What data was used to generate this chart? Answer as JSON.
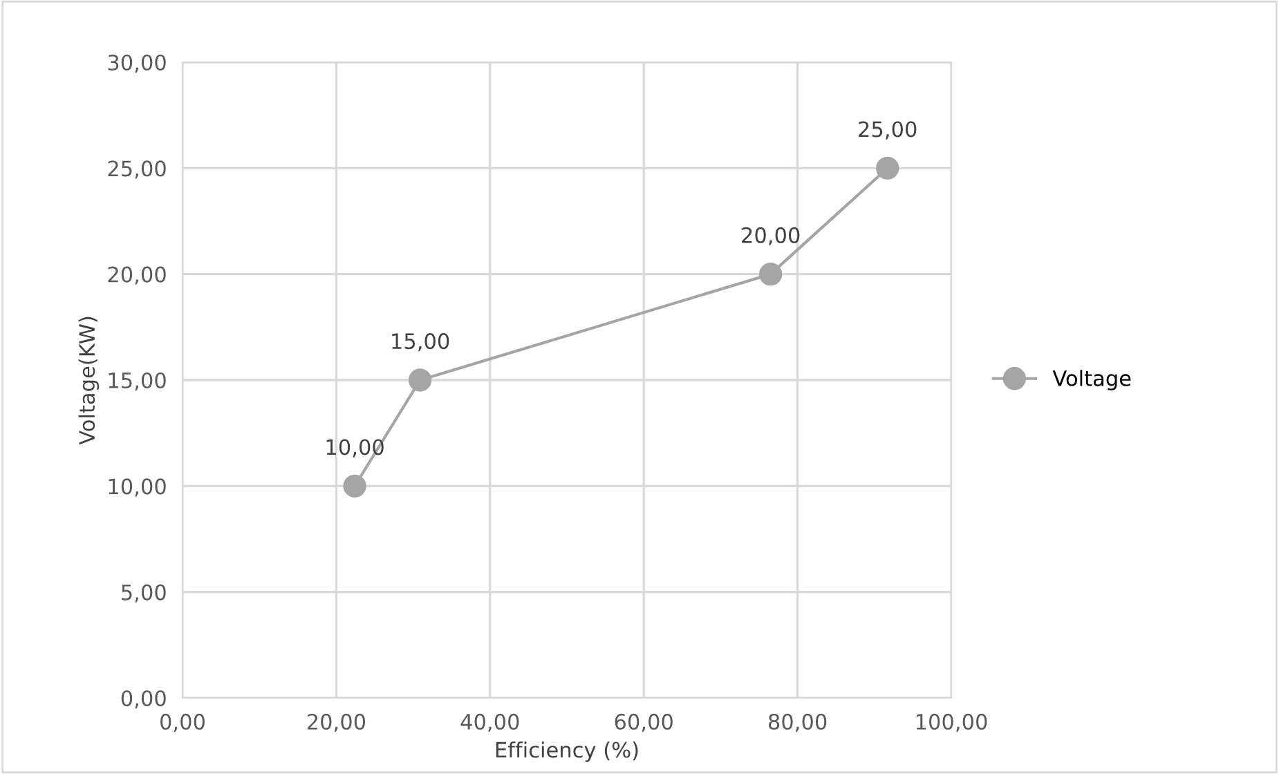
{
  "chart_data": {
    "type": "line",
    "xlabel": "Efficiency (%)",
    "ylabel": "Voltage(KW)",
    "series": [
      {
        "name": "Voltage",
        "color": "#a5a5a5",
        "x": [
          22.4,
          30.9,
          76.5,
          91.7
        ],
        "values": [
          10,
          15,
          20,
          25
        ],
        "value_labels": [
          "10,00",
          "15,00",
          "20,00",
          "25,00"
        ]
      }
    ],
    "xlim": [
      0,
      100
    ],
    "ylim": [
      0,
      30
    ],
    "xticks": [
      {
        "value": 0,
        "label": "0,00"
      },
      {
        "value": 20,
        "label": "20,00"
      },
      {
        "value": 40,
        "label": "40,00"
      },
      {
        "value": 60,
        "label": "60,00"
      },
      {
        "value": 80,
        "label": "80,00"
      },
      {
        "value": 100,
        "label": "100,00"
      }
    ],
    "yticks": [
      {
        "value": 0,
        "label": "0,00"
      },
      {
        "value": 5,
        "label": "5,00"
      },
      {
        "value": 10,
        "label": "10,00"
      },
      {
        "value": 15,
        "label": "15,00"
      },
      {
        "value": 20,
        "label": "20,00"
      },
      {
        "value": 25,
        "label": "25,00"
      },
      {
        "value": 30,
        "label": "30,00"
      }
    ],
    "grid": true,
    "legend": "right",
    "marker": "circle",
    "line_style": "solid"
  }
}
